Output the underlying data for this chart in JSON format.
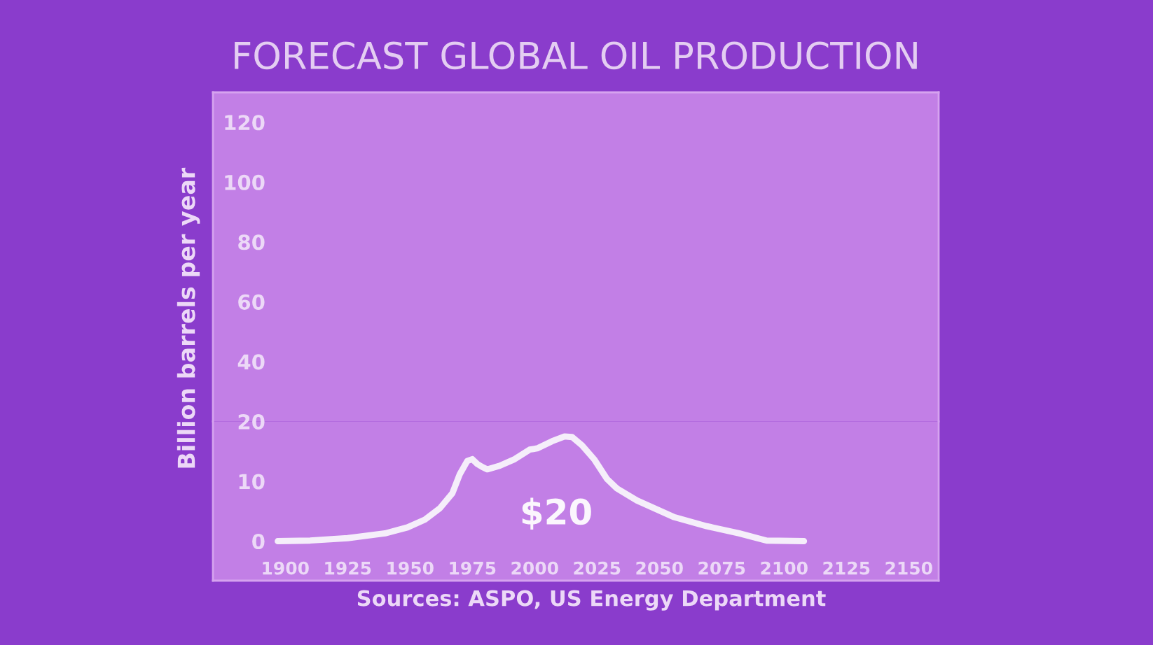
{
  "chart_data": [
    {
      "type": "line",
      "title": "FORECAST GLOBAL OIL PRODUCTION",
      "ylabel": "Billion barrels per year",
      "xlim": [
        1871,
        2162
      ],
      "ylim": [
        20,
        130
      ],
      "yticks": [
        40,
        60,
        80,
        100,
        120
      ],
      "tick_labels": "y"
    },
    {
      "type": "line",
      "x": [
        1897,
        1910,
        1925,
        1940,
        1949,
        1956,
        1962,
        1967,
        1970,
        1973,
        1975,
        1977,
        1979,
        1981,
        1986,
        1992,
        1998,
        2001,
        2007,
        2012,
        2015,
        2019,
        2024,
        2029,
        2033,
        2041,
        2056,
        2069,
        2082,
        2093,
        2108
      ],
      "series": [
        {
          "color": "#f5eefa",
          "values": [
            0,
            0.1,
            0.5,
            1.3,
            2.3,
            3.6,
            5.5,
            8,
            11.2,
            13.4,
            13.7,
            12.9,
            12.4,
            12,
            12.6,
            13.7,
            15.3,
            15.5,
            16.7,
            17.5,
            17.4,
            16,
            13.6,
            10.4,
            8.8,
            6.8,
            4,
            2.5,
            1.3,
            0.1,
            0
          ]
        }
      ],
      "xlim": [
        1871,
        2162
      ],
      "ylim": [
        -6.6,
        20
      ],
      "xticks": [
        1900,
        1925,
        1950,
        1975,
        2000,
        2025,
        2050,
        2075,
        2100,
        2125,
        2150
      ],
      "yticks": [
        0,
        10,
        20
      ],
      "line_style": "solid",
      "annotations": [
        "$20",
        "Sources: ASPO, US Energy Department"
      ]
    }
  ]
}
